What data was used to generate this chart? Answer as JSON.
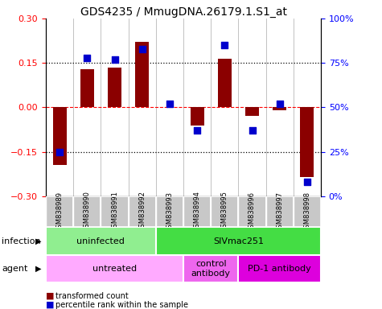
{
  "title": "GDS4235 / MmugDNA.26179.1.S1_at",
  "samples": [
    "GSM838989",
    "GSM838990",
    "GSM838991",
    "GSM838992",
    "GSM838993",
    "GSM838994",
    "GSM838995",
    "GSM838996",
    "GSM838997",
    "GSM838998"
  ],
  "transformed_count": [
    -0.195,
    0.13,
    0.135,
    0.22,
    0.0,
    -0.06,
    0.165,
    -0.03,
    -0.01,
    -0.235
  ],
  "percentile_rank": [
    25,
    78,
    77,
    83,
    52,
    37,
    85,
    37,
    52,
    8
  ],
  "ylim_left": [
    -0.3,
    0.3
  ],
  "ylim_right": [
    0,
    100
  ],
  "yticks_left": [
    -0.3,
    -0.15,
    0.0,
    0.15,
    0.3
  ],
  "yticks_right": [
    0,
    25,
    50,
    75,
    100
  ],
  "ytick_labels_right": [
    "0%",
    "25%",
    "50%",
    "75%",
    "100%"
  ],
  "hlines_dotted": [
    -0.15,
    0.15
  ],
  "hline_zero": 0.0,
  "infection_groups": [
    {
      "label": "uninfected",
      "start": 0,
      "end": 3,
      "color": "#90EE90"
    },
    {
      "label": "SIVmac251",
      "start": 4,
      "end": 9,
      "color": "#44DD44"
    }
  ],
  "agent_groups": [
    {
      "label": "untreated",
      "start": 0,
      "end": 4,
      "color": "#FFAAFF"
    },
    {
      "label": "control\nantibody",
      "start": 5,
      "end": 6,
      "color": "#EE66EE"
    },
    {
      "label": "PD-1 antibody",
      "start": 7,
      "end": 9,
      "color": "#DD00DD"
    }
  ],
  "bar_color": "#8B0000",
  "square_color": "#0000CD",
  "bar_width": 0.5,
  "square_size": 35,
  "infection_label": "infection",
  "agent_label": "agent",
  "legend_tc": "transformed count",
  "legend_pr": "percentile rank within the sample",
  "bg_color": "#FFFFFF",
  "xticklabel_bg": "#C8C8C8",
  "title_fontsize": 10,
  "tick_fontsize": 8
}
